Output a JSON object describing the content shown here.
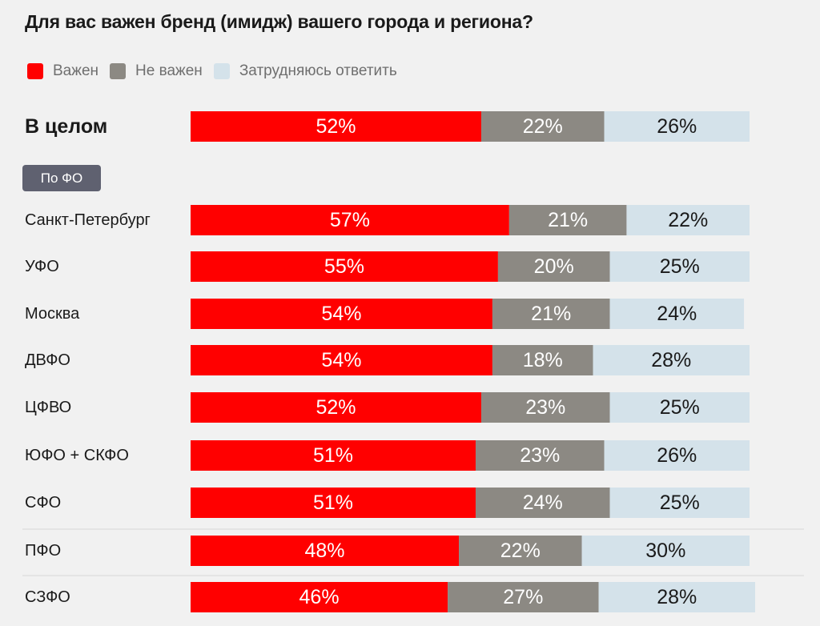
{
  "title": "Для вас важен бренд (имидж) вашего города и региона?",
  "legend": [
    {
      "label": "Важен",
      "color": "#ff0000"
    },
    {
      "label": "Не важен",
      "color": "#8c8983"
    },
    {
      "label": "Затрудняюсь ответить",
      "color": "#d4e2ea"
    }
  ],
  "badge_label": "По ФО",
  "chart_data": {
    "type": "bar",
    "orientation": "horizontal",
    "stacked": true,
    "categories": [
      "В целом",
      "Санкт-Петербург",
      "УФО",
      "Москва",
      "ДВФО",
      "ЦФВО",
      "ЮФО + СКФО",
      "СФО",
      "ПФО",
      "СЗФО"
    ],
    "series": [
      {
        "name": "Важен",
        "color": "#ff0000",
        "values": [
          52,
          57,
          55,
          54,
          54,
          52,
          51,
          51,
          48,
          46
        ]
      },
      {
        "name": "Не важен",
        "color": "#8c8983",
        "values": [
          22,
          21,
          20,
          21,
          18,
          23,
          23,
          24,
          22,
          27
        ]
      },
      {
        "name": "Затрудняюсь ответить",
        "color": "#d4e2ea",
        "values": [
          26,
          22,
          25,
          24,
          28,
          25,
          26,
          25,
          30,
          28
        ]
      }
    ],
    "value_format": "{v}%",
    "xlim": [
      0,
      100
    ],
    "grid": false,
    "legend_position": "top-left"
  }
}
